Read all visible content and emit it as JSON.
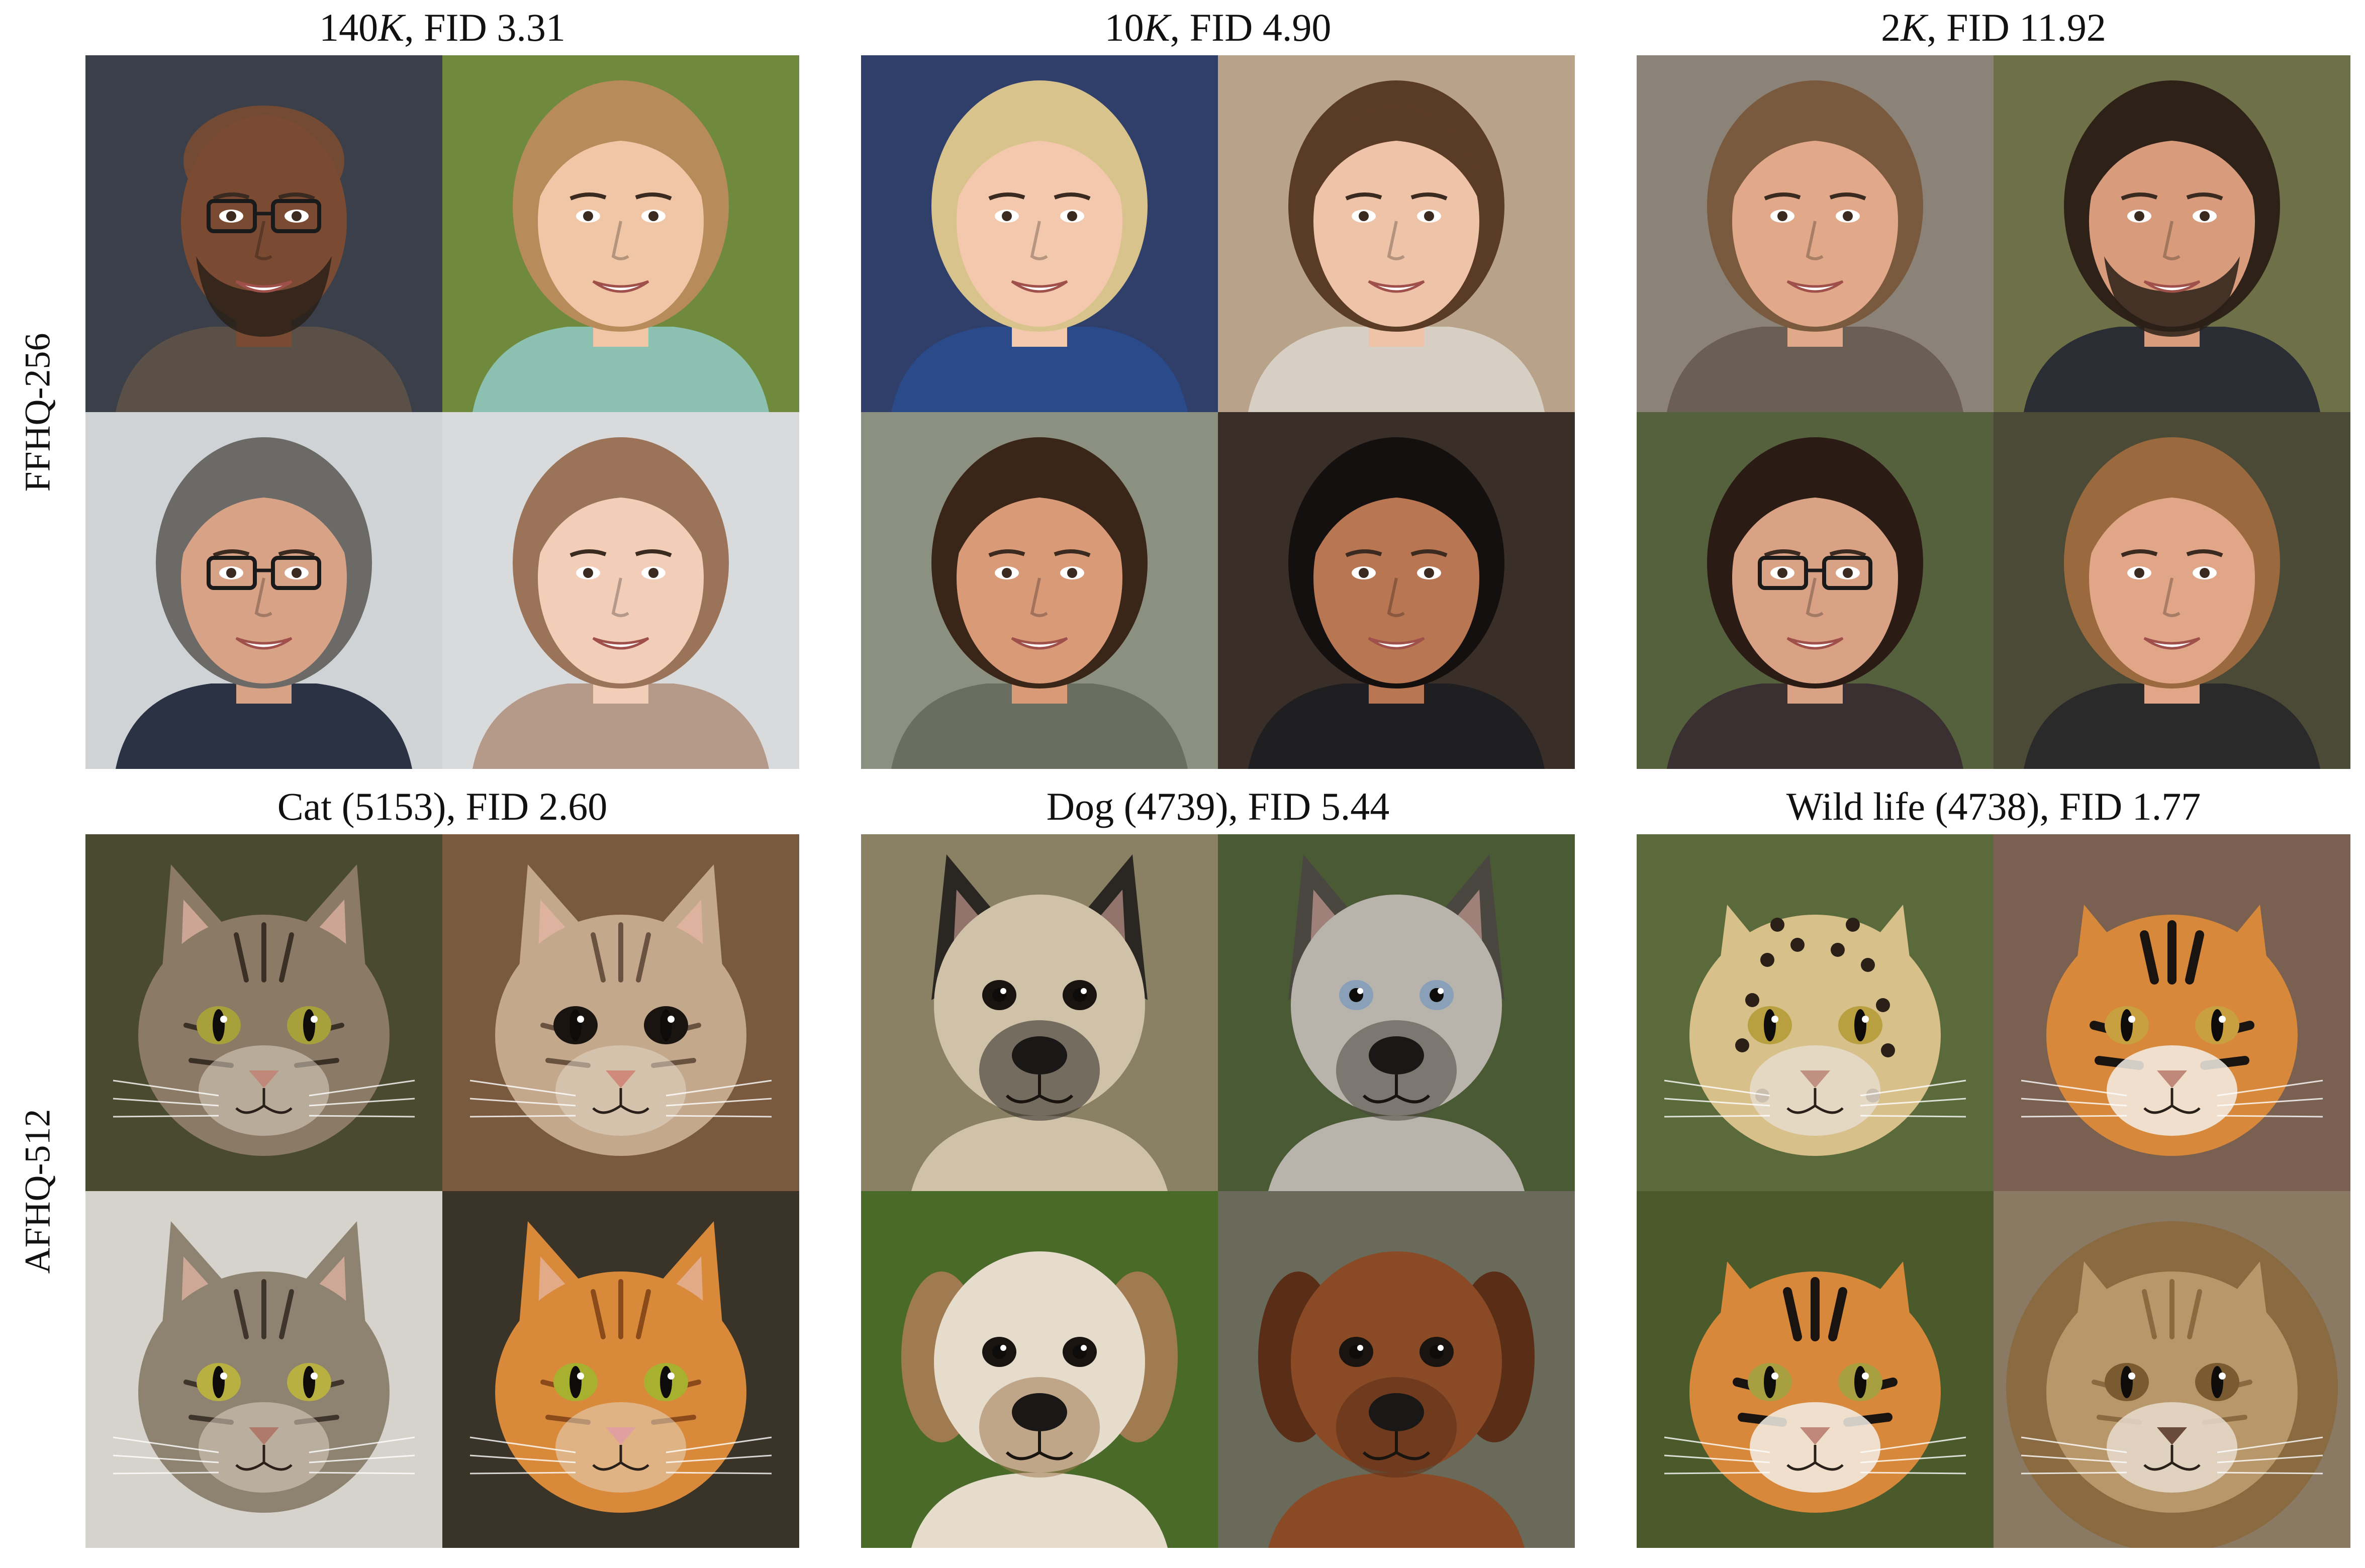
{
  "rows": [
    {
      "label": "FFHQ-256",
      "panels": [
        {
          "title_pre": "140",
          "title_em": "K",
          "title_post": ", FID 3.31",
          "tiles": [
            {
              "subject": "human-face",
              "bg": "#3b3f4a",
              "skin": "#7a4b32",
              "hair": "#2a1f18",
              "shirt": "#5a5048",
              "glasses": true,
              "beard": true,
              "bald": true
            },
            {
              "subject": "human-face",
              "bg": "#6f8a3c",
              "skin": "#f0c6a6",
              "hair": "#b88b5a",
              "shirt": "#8cc0b0",
              "glasses": false,
              "beard": false,
              "bald": false
            },
            {
              "subject": "human-face",
              "bg": "#cfd3d6",
              "skin": "#d8a287",
              "hair": "#6b6a66",
              "shirt": "#2b3244",
              "glasses": true,
              "beard": false,
              "bald": false
            },
            {
              "subject": "human-face",
              "bg": "#d9dadc",
              "skin": "#f2cdb8",
              "hair": "#9a7358",
              "shirt": "#b59a8a",
              "glasses": false,
              "beard": false,
              "bald": false
            }
          ]
        },
        {
          "title_pre": "10",
          "title_em": "K",
          "title_post": ", FID 4.90",
          "tiles": [
            {
              "subject": "human-face",
              "bg": "#2f3f6a",
              "skin": "#f3c8ac",
              "hair": "#d9c38c",
              "shirt": "#2a4a8a",
              "glasses": false,
              "beard": false,
              "bald": false
            },
            {
              "subject": "human-face",
              "bg": "#b8a38a",
              "skin": "#efc3a8",
              "hair": "#5a3b26",
              "shirt": "#d8cfc4",
              "glasses": false,
              "beard": false,
              "bald": false
            },
            {
              "subject": "human-face",
              "bg": "#8c9080",
              "skin": "#d99a78",
              "hair": "#3a2618",
              "shirt": "#6a6e60",
              "glasses": false,
              "beard": false,
              "bald": false
            },
            {
              "subject": "human-face",
              "bg": "#3a2e28",
              "skin": "#b87652",
              "hair": "#141010",
              "shirt": "#1f1f22",
              "glasses": false,
              "beard": false,
              "bald": false
            }
          ]
        },
        {
          "title_pre": "2",
          "title_em": "K",
          "title_post": ", FID 11.92",
          "tiles": [
            {
              "subject": "human-face",
              "bg": "#8c8378",
              "skin": "#e1a98a",
              "hair": "#7a5a3e",
              "shirt": "#6b5f55",
              "glasses": false,
              "beard": false,
              "bald": false
            },
            {
              "subject": "human-face",
              "bg": "#6e7048",
              "skin": "#d89c7c",
              "hair": "#2e2218",
              "shirt": "#2a2d33",
              "glasses": false,
              "beard": true,
              "bald": false
            },
            {
              "subject": "human-face",
              "bg": "#55603c",
              "skin": "#d9a285",
              "hair": "#2a1c14",
              "shirt": "#3a3032",
              "glasses": true,
              "beard": false,
              "bald": false
            },
            {
              "subject": "human-face",
              "bg": "#4a4a36",
              "skin": "#e0a687",
              "hair": "#9a6a3e",
              "shirt": "#2a2a2a",
              "glasses": false,
              "beard": false,
              "bald": false
            }
          ]
        }
      ]
    },
    {
      "label": "AFHQ-512",
      "panels": [
        {
          "title_pre": "Cat (5153), FID 2.60",
          "title_em": "",
          "title_post": "",
          "tiles": [
            {
              "subject": "cat",
              "bg": "#4a4a30",
              "fur": "#8a7a66",
              "stripe": "#3a3026",
              "eye": "#a8a03a",
              "nose": "#c08878"
            },
            {
              "subject": "cat",
              "bg": "#7a5a3e",
              "fur": "#c4a88c",
              "stripe": "#6a5240",
              "eye": "#1a1410",
              "nose": "#d08a7a"
            },
            {
              "subject": "cat",
              "bg": "#d6d2cc",
              "fur": "#8e8270",
              "stripe": "#3e362c",
              "eye": "#b8b040",
              "nose": "#b07a6a"
            },
            {
              "subject": "cat",
              "bg": "#3a3428",
              "fur": "#d88a3a",
              "stripe": "#8a4a1a",
              "eye": "#a8b030",
              "nose": "#e0a0a0"
            }
          ]
        },
        {
          "title_pre": "Dog (4739), FID 5.44",
          "title_em": "",
          "title_post": "",
          "tiles": [
            {
              "subject": "dog",
              "bg": "#8a8064",
              "fur": "#cfc2a8",
              "mask": "#2a2622",
              "eye": "#1a1410",
              "nose": "#1a1816",
              "ears": "erect"
            },
            {
              "subject": "dog",
              "bg": "#4a5a34",
              "fur": "#b8b4ac",
              "mask": "#4a4640",
              "eye": "#8aa0b8",
              "nose": "#1a1816",
              "ears": "erect"
            },
            {
              "subject": "dog",
              "bg": "#4a6a2a",
              "fur": "#e6dccc",
              "mask": "#a07a50",
              "eye": "#1a1410",
              "nose": "#1a1816",
              "ears": "floppy"
            },
            {
              "subject": "dog",
              "bg": "#6a6a5a",
              "fur": "#8a4a26",
              "mask": "#5a2e16",
              "eye": "#1a1410",
              "nose": "#1a1816",
              "ears": "floppy"
            }
          ]
        },
        {
          "title_pre": "Wild life (4738), FID 1.77",
          "title_em": "",
          "title_post": "",
          "tiles": [
            {
              "subject": "leopard",
              "bg": "#5a6a3a",
              "fur": "#d8c08a",
              "stripe": "#2a2018",
              "eye": "#b8a040",
              "nose": "#c09080"
            },
            {
              "subject": "tiger",
              "bg": "#7a6050",
              "fur": "#d8883a",
              "stripe": "#1a1410",
              "eye": "#c8a040",
              "nose": "#c08878"
            },
            {
              "subject": "tiger",
              "bg": "#4a5a2a",
              "fur": "#d8883a",
              "stripe": "#1a1410",
              "eye": "#a8a040",
              "nose": "#c08878"
            },
            {
              "subject": "lion",
              "bg": "#8a7a64",
              "fur": "#b8986a",
              "stripe": "#8a6a40",
              "eye": "#7a5a30",
              "nose": "#6a4a3a"
            }
          ]
        }
      ]
    }
  ]
}
